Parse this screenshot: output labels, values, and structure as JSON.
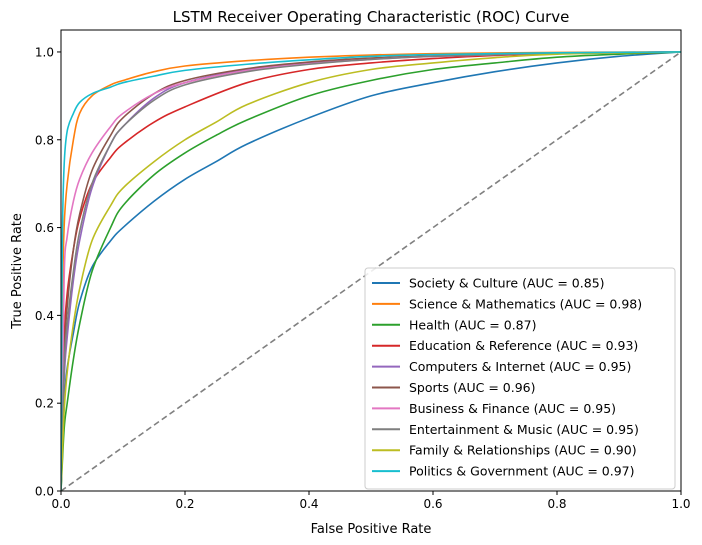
{
  "chart_data": {
    "type": "line",
    "title": "LSTM Receiver Operating Characteristic (ROC) Curve",
    "xlabel": "False Positive Rate",
    "ylabel": "True Positive Rate",
    "xlim": [
      0.0,
      1.0
    ],
    "ylim": [
      0.0,
      1.05
    ],
    "xticks": [
      0.0,
      0.2,
      0.4,
      0.6,
      0.8,
      1.0
    ],
    "yticks": [
      0.0,
      0.2,
      0.4,
      0.6,
      0.8,
      1.0
    ],
    "xtick_labels": [
      "0.0",
      "0.2",
      "0.4",
      "0.6",
      "0.8",
      "1.0"
    ],
    "ytick_labels": [
      "0.0",
      "0.2",
      "0.4",
      "0.6",
      "0.8",
      "1.0"
    ],
    "grid": false,
    "legend_position": "lower-right",
    "diagonal_reference": {
      "x": [
        0,
        1
      ],
      "y": [
        0,
        1
      ],
      "color": "#808080",
      "style": "dashed"
    },
    "series": [
      {
        "name": "Society & Culture (AUC = 0.85)",
        "color": "#1f77b4",
        "x": [
          0,
          0.005,
          0.01,
          0.02,
          0.03,
          0.05,
          0.08,
          0.1,
          0.15,
          0.2,
          0.25,
          0.3,
          0.4,
          0.5,
          0.6,
          0.7,
          0.8,
          0.9,
          1.0
        ],
        "y": [
          0,
          0.2,
          0.28,
          0.36,
          0.43,
          0.51,
          0.57,
          0.6,
          0.66,
          0.71,
          0.75,
          0.79,
          0.85,
          0.9,
          0.93,
          0.955,
          0.975,
          0.99,
          1.0
        ]
      },
      {
        "name": "Science & Mathematics (AUC = 0.98)",
        "color": "#ff7f0e",
        "x": [
          0,
          0.002,
          0.005,
          0.01,
          0.02,
          0.03,
          0.05,
          0.08,
          0.1,
          0.15,
          0.2,
          0.3,
          0.4,
          0.5,
          0.6,
          0.8,
          1.0
        ],
        "y": [
          0,
          0.4,
          0.6,
          0.7,
          0.8,
          0.86,
          0.9,
          0.925,
          0.935,
          0.955,
          0.968,
          0.98,
          0.988,
          0.993,
          0.996,
          0.999,
          1.0
        ]
      },
      {
        "name": "Health (AUC = 0.87)",
        "color": "#2ca02c",
        "x": [
          0,
          0.005,
          0.01,
          0.02,
          0.03,
          0.05,
          0.08,
          0.1,
          0.15,
          0.2,
          0.25,
          0.3,
          0.4,
          0.5,
          0.6,
          0.7,
          0.8,
          0.9,
          1.0
        ],
        "y": [
          0,
          0.14,
          0.2,
          0.3,
          0.38,
          0.5,
          0.6,
          0.65,
          0.72,
          0.77,
          0.81,
          0.845,
          0.9,
          0.935,
          0.96,
          0.975,
          0.988,
          0.995,
          1.0
        ]
      },
      {
        "name": "Education & Reference (AUC = 0.93)",
        "color": "#d62728",
        "x": [
          0,
          0.005,
          0.01,
          0.02,
          0.03,
          0.05,
          0.08,
          0.1,
          0.15,
          0.2,
          0.3,
          0.4,
          0.5,
          0.6,
          0.7,
          0.8,
          1.0
        ],
        "y": [
          0,
          0.33,
          0.45,
          0.55,
          0.62,
          0.7,
          0.76,
          0.79,
          0.84,
          0.875,
          0.93,
          0.96,
          0.975,
          0.985,
          0.992,
          0.996,
          1.0
        ]
      },
      {
        "name": "Computers & Internet (AUC = 0.95)",
        "color": "#9467bd",
        "x": [
          0,
          0.005,
          0.01,
          0.02,
          0.03,
          0.05,
          0.08,
          0.1,
          0.15,
          0.2,
          0.3,
          0.4,
          0.5,
          0.6,
          0.8,
          1.0
        ],
        "y": [
          0,
          0.25,
          0.35,
          0.48,
          0.57,
          0.69,
          0.79,
          0.83,
          0.895,
          0.93,
          0.96,
          0.975,
          0.985,
          0.99,
          0.997,
          1.0
        ]
      },
      {
        "name": "Sports (AUC = 0.96)",
        "color": "#8c564b",
        "x": [
          0,
          0.005,
          0.01,
          0.02,
          0.03,
          0.05,
          0.08,
          0.1,
          0.15,
          0.2,
          0.3,
          0.4,
          0.5,
          0.6,
          0.8,
          1.0
        ],
        "y": [
          0,
          0.3,
          0.42,
          0.55,
          0.63,
          0.73,
          0.81,
          0.85,
          0.905,
          0.935,
          0.962,
          0.977,
          0.986,
          0.991,
          0.997,
          1.0
        ]
      },
      {
        "name": "Business & Finance (AUC = 0.95)",
        "color": "#e377c2",
        "x": [
          0,
          0.005,
          0.01,
          0.02,
          0.03,
          0.05,
          0.08,
          0.1,
          0.15,
          0.2,
          0.3,
          0.4,
          0.5,
          0.6,
          0.8,
          1.0
        ],
        "y": [
          0,
          0.48,
          0.58,
          0.66,
          0.71,
          0.77,
          0.83,
          0.86,
          0.905,
          0.93,
          0.958,
          0.973,
          0.983,
          0.99,
          0.997,
          1.0
        ]
      },
      {
        "name": "Entertainment & Music (AUC = 0.95)",
        "color": "#7f7f7f",
        "x": [
          0,
          0.005,
          0.01,
          0.02,
          0.03,
          0.05,
          0.08,
          0.1,
          0.15,
          0.2,
          0.3,
          0.4,
          0.5,
          0.6,
          0.8,
          1.0
        ],
        "y": [
          0,
          0.28,
          0.38,
          0.5,
          0.59,
          0.7,
          0.79,
          0.83,
          0.89,
          0.925,
          0.955,
          0.972,
          0.983,
          0.99,
          0.997,
          1.0
        ]
      },
      {
        "name": "Family & Relationships (AUC = 0.90)",
        "color": "#bcbd22",
        "x": [
          0,
          0.005,
          0.01,
          0.02,
          0.03,
          0.05,
          0.08,
          0.1,
          0.15,
          0.2,
          0.25,
          0.3,
          0.4,
          0.5,
          0.6,
          0.7,
          0.8,
          1.0
        ],
        "y": [
          0,
          0.18,
          0.27,
          0.38,
          0.46,
          0.57,
          0.65,
          0.69,
          0.75,
          0.8,
          0.84,
          0.88,
          0.93,
          0.96,
          0.975,
          0.987,
          0.995,
          1.0
        ]
      },
      {
        "name": "Politics & Government (AUC = 0.97)",
        "color": "#17becf",
        "x": [
          0,
          0.002,
          0.005,
          0.01,
          0.02,
          0.03,
          0.05,
          0.08,
          0.1,
          0.15,
          0.2,
          0.3,
          0.4,
          0.5,
          0.6,
          0.8,
          1.0
        ],
        "y": [
          0,
          0.55,
          0.74,
          0.82,
          0.86,
          0.885,
          0.905,
          0.92,
          0.93,
          0.945,
          0.958,
          0.972,
          0.982,
          0.99,
          0.994,
          0.998,
          1.0
        ]
      }
    ]
  }
}
